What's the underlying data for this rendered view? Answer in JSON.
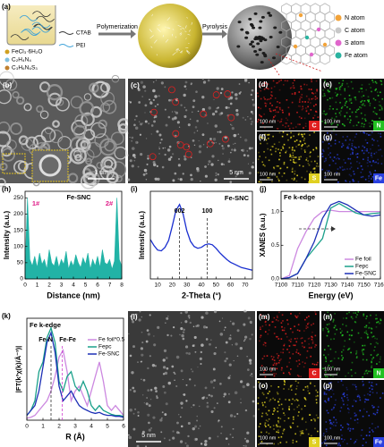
{
  "panels": {
    "labels": [
      "(a)",
      "(b)",
      "(c)",
      "(d)",
      "(e)",
      "(f)",
      "(g)",
      "(h)",
      "(i)",
      "(j)",
      "(k)",
      "(l)",
      "(m)",
      "(n)",
      "(o)",
      "(p)"
    ]
  },
  "scheme": {
    "steps": [
      "Polymerization",
      "Pyrolysis"
    ],
    "reagents": [
      "FeCl₃·6H₂O",
      "C₂H₄N₄",
      "C₃H₆N₆S₃",
      "CTAB",
      "PEI"
    ],
    "atoms": [
      {
        "name": "N atom",
        "color": "#f2a33a"
      },
      {
        "name": "C atom",
        "color": "#c8c8c8"
      },
      {
        "name": "S atom",
        "color": "#e066cc"
      },
      {
        "name": "Fe atom",
        "color": "#2ab3a0"
      }
    ]
  },
  "images": {
    "sem_scale": "1 um",
    "tem_scale": "5 nm",
    "stem_scale": "5 nm",
    "eds_scale": "100 nm",
    "elements": [
      {
        "symbol": "C",
        "color": "#e02020"
      },
      {
        "symbol": "N",
        "color": "#22c022"
      },
      {
        "symbol": "S",
        "color": "#e0d020"
      },
      {
        "symbol": "Fe",
        "color": "#2a40e0"
      }
    ]
  },
  "chart_data": [
    {
      "type": "area",
      "title": "Fe-SNC",
      "annotations": [
        "1#",
        "2#"
      ],
      "xlabel": "Distance (nm)",
      "ylabel": "Intensity (a.u.)",
      "x": [
        0,
        0.2,
        0.4,
        0.6,
        0.8,
        1,
        1.2,
        1.4,
        1.6,
        1.8,
        2,
        2.2,
        2.4,
        2.6,
        2.8,
        3,
        3.2,
        3.4,
        3.6,
        3.8,
        4,
        4.2,
        4.4,
        4.6,
        4.8,
        5,
        5.2,
        5.4,
        5.6,
        5.8,
        6,
        6.2,
        6.4,
        6.6,
        6.8,
        7,
        7.2,
        7.4,
        7.6,
        7.8,
        8
      ],
      "series": [
        {
          "name": "Fe-SNC",
          "color": "#22b3a6",
          "values": [
            30,
            250,
            60,
            40,
            70,
            35,
            80,
            45,
            60,
            30,
            90,
            50,
            40,
            70,
            35,
            60,
            45,
            85,
            30,
            55,
            40,
            75,
            50,
            35,
            65,
            45,
            80,
            30,
            60,
            40,
            70,
            35,
            90,
            50,
            45,
            60,
            30,
            55,
            250,
            60,
            40
          ]
        }
      ],
      "xlim": [
        0,
        8
      ],
      "xticks": [
        0,
        1,
        2,
        3,
        4,
        5,
        6,
        7,
        8
      ],
      "ylim": [
        0,
        270
      ],
      "yticks": [
        0,
        50,
        100,
        150,
        200,
        250
      ]
    },
    {
      "type": "line",
      "title": "Fe-SNC",
      "xlabel": "2-Theta (°)",
      "ylabel": "Intensity (a.u.)",
      "markers": [
        {
          "label": "002",
          "x": 25
        },
        {
          "label": "100",
          "x": 44
        }
      ],
      "x": [
        5,
        7.5,
        10,
        12.5,
        15,
        17.5,
        20,
        22.5,
        25,
        27.5,
        30,
        32.5,
        35,
        37.5,
        40,
        42.5,
        45,
        47.5,
        50,
        52.5,
        55,
        57.5,
        60,
        62.5,
        65,
        67.5,
        70,
        72.5,
        75
      ],
      "series": [
        {
          "name": "Fe-SNC",
          "color": "#1a2fd0",
          "values": [
            0.45,
            0.38,
            0.33,
            0.32,
            0.36,
            0.44,
            0.6,
            0.78,
            0.85,
            0.74,
            0.55,
            0.43,
            0.37,
            0.35,
            0.36,
            0.39,
            0.4,
            0.39,
            0.35,
            0.3,
            0.26,
            0.22,
            0.19,
            0.17,
            0.15,
            0.13,
            0.12,
            0.11,
            0.1
          ]
        }
      ],
      "xlim": [
        5,
        75
      ],
      "xticks": [
        10,
        20,
        30,
        40,
        50,
        60,
        70
      ],
      "ylim": [
        0,
        1
      ]
    },
    {
      "type": "line",
      "title": "Fe k-edge",
      "xlabel": "Energy (eV)",
      "ylabel": "XANES (a.u.)",
      "legend": "lower right",
      "x": [
        7100,
        7105,
        7110,
        7115,
        7120,
        7125,
        7130,
        7135,
        7140,
        7145,
        7150,
        7155,
        7160
      ],
      "series": [
        {
          "name": "Fe foil",
          "color": "#cc88e0",
          "values": [
            0,
            0.05,
            0.45,
            0.7,
            0.9,
            1.0,
            1.02,
            1.0,
            1.0,
            1.0,
            1.0,
            1.0,
            1.0
          ]
        },
        {
          "name": "Fepc",
          "color": "#1aa08a",
          "values": [
            0,
            0.02,
            0.08,
            0.3,
            0.45,
            0.6,
            1.05,
            1.12,
            1.05,
            0.98,
            0.95,
            0.97,
            0.98
          ]
        },
        {
          "name": "Fe-SNC",
          "color": "#1c2fb5",
          "values": [
            0,
            0.02,
            0.08,
            0.3,
            0.55,
            0.9,
            1.1,
            1.15,
            1.1,
            1.02,
            0.95,
            0.93,
            0.95
          ]
        }
      ],
      "xlim": [
        7100,
        7160
      ],
      "xticks": [
        7100,
        7110,
        7120,
        7130,
        7140,
        7150,
        7160
      ],
      "ylim": [
        0,
        1.3
      ],
      "yticks": [
        {
          "value": 0,
          "label": "0.0"
        },
        {
          "value": 0.5,
          "label": "0.5"
        },
        {
          "value": 1,
          "label": "1.0"
        }
      ]
    },
    {
      "type": "line",
      "title": "Fe k-edge",
      "xlabel": "R (Å)",
      "ylabel": "|FT(k³χ(k)/Å⁻³)|",
      "legend": "upper right",
      "markers": [
        {
          "label": "Fe-N",
          "x": 1.5
        },
        {
          "label": "Fe-Fe",
          "x": 2.2
        }
      ],
      "x": [
        0,
        0.25,
        0.5,
        0.75,
        1,
        1.25,
        1.5,
        1.75,
        2,
        2.25,
        2.5,
        2.75,
        3,
        3.25,
        3.5,
        3.75,
        4,
        4.25,
        4.5,
        4.75,
        5,
        5.25,
        5.5,
        5.75,
        6
      ],
      "series": [
        {
          "name": "Fe foil*0.5",
          "color": "#cc88e0",
          "values": [
            0.02,
            0.03,
            0.05,
            0.1,
            0.15,
            0.2,
            0.3,
            0.45,
            0.65,
            0.72,
            0.5,
            0.2,
            0.3,
            0.35,
            0.25,
            0.15,
            0.3,
            0.45,
            0.6,
            0.4,
            0.15,
            0.1,
            0.15,
            0.1,
            0.05
          ]
        },
        {
          "name": "Fepc",
          "color": "#1aa08a",
          "values": [
            0.05,
            0.1,
            0.2,
            0.5,
            0.6,
            0.85,
            0.95,
            0.8,
            0.4,
            0.3,
            0.45,
            0.5,
            0.35,
            0.3,
            0.4,
            0.3,
            0.15,
            0.1,
            0.15,
            0.1,
            0.08,
            0.06,
            0.05,
            0.05,
            0.04
          ]
        },
        {
          "name": "Fe-SNC",
          "color": "#1c2fb5",
          "values": [
            0.05,
            0.1,
            0.15,
            0.3,
            0.55,
            0.8,
            0.9,
            0.7,
            0.35,
            0.2,
            0.25,
            0.3,
            0.22,
            0.15,
            0.12,
            0.1,
            0.08,
            0.07,
            0.08,
            0.06,
            0.05,
            0.05,
            0.04,
            0.04,
            0.03
          ]
        }
      ],
      "xlim": [
        0,
        6
      ],
      "xticks": [
        0,
        1,
        2,
        3,
        4,
        5,
        6
      ],
      "ylim": [
        0,
        1.05
      ]
    }
  ]
}
